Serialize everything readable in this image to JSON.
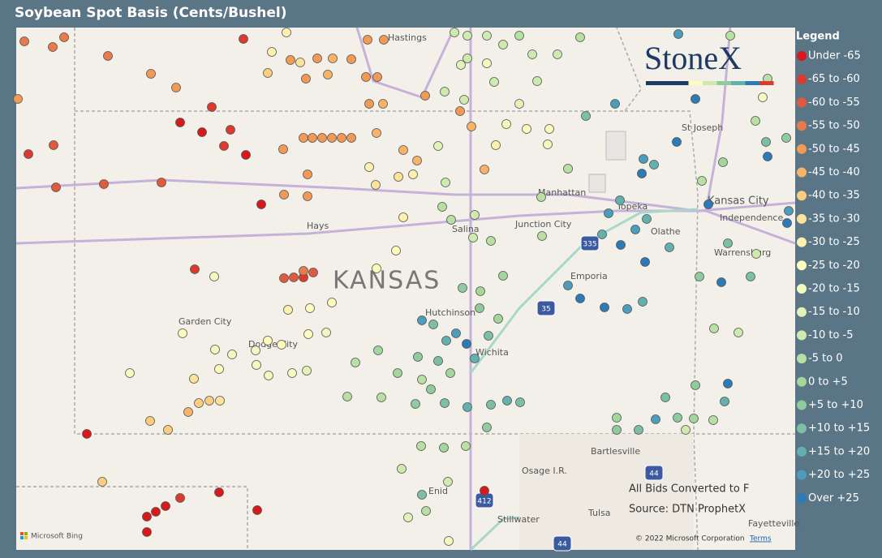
{
  "title": "Soybean Spot Basis (Cents/Bushel)",
  "logo": "StoneX",
  "legend": {
    "title": "Legend",
    "items": [
      {
        "label": "Under -65",
        "color": "#d7191c"
      },
      {
        "label": "-65 to -60",
        "color": "#db3a2e"
      },
      {
        "label": "-60 to -55",
        "color": "#e05a3e"
      },
      {
        "label": "-55 to -50",
        "color": "#e97b4a"
      },
      {
        "label": "-50 to -45",
        "color": "#f29a55"
      },
      {
        "label": "-45 to -40",
        "color": "#f8b466"
      },
      {
        "label": "-40 to -35",
        "color": "#fccd80"
      },
      {
        "label": "-35 to -30",
        "color": "#fde29a"
      },
      {
        "label": "-30 to -25",
        "color": "#fef0ad"
      },
      {
        "label": "-25 to -20",
        "color": "#fefcbc"
      },
      {
        "label": "-20 to -15",
        "color": "#f2f9bf"
      },
      {
        "label": "-15 to -10",
        "color": "#e2f2b8"
      },
      {
        "label": "-10 to -5",
        "color": "#cfeaae"
      },
      {
        "label": "-5 to 0",
        "color": "#b8e0a3"
      },
      {
        "label": "0 to +5",
        "color": "#a3d69b"
      },
      {
        "label": "+5 to +10",
        "color": "#8fcb9e"
      },
      {
        "label": "+10 to +15",
        "color": "#7bbfa6"
      },
      {
        "label": "+15 to +20",
        "color": "#64b0ae"
      },
      {
        "label": "+20 to +25",
        "color": "#4b9dbb"
      },
      {
        "label": "Over +25",
        "color": "#2c7bb6"
      }
    ]
  },
  "map": {
    "labels": [
      "Hastings",
      "St Joseph",
      "Manhattan",
      "Kansas City",
      "Independence",
      "Topeka",
      "Junction City",
      "Salina",
      "Olathe",
      "Hays",
      "Warrensburg",
      "Emporia",
      "KANSAS",
      "Garden City",
      "Dodge City",
      "Hutchinson",
      "Wichita",
      "Bartlesville",
      "Osage I.R.",
      "Enid",
      "Stillwater",
      "Tulsa",
      "Fayetteville"
    ],
    "highway_shields": [
      "335",
      "35",
      "44",
      "412",
      "44"
    ]
  },
  "notes": [
    "All Bids Converted to F",
    "Source: DTN ProphetX"
  ],
  "attribution": {
    "bing": "Microsoft Bing",
    "copyright": "© 2022 Microsoft Corporation",
    "terms": "Terms"
  }
}
